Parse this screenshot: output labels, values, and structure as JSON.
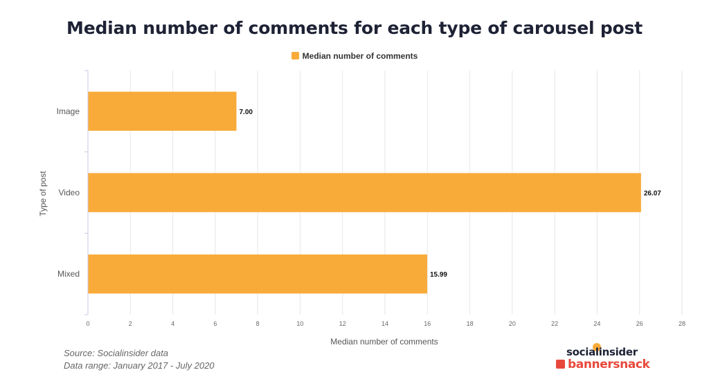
{
  "chart_data": {
    "type": "bar",
    "orientation": "horizontal",
    "title": "Median number of comments for each type of carousel post",
    "xlabel": "Median number of comments",
    "ylabel": "Type of post",
    "categories": [
      "Image",
      "Video",
      "Mixed"
    ],
    "series": [
      {
        "name": "Median number of comments",
        "values": [
          7.0,
          26.07,
          15.99
        ],
        "labels": [
          "7.00",
          "26.07",
          "15.99"
        ]
      }
    ],
    "xlim": [
      0,
      28
    ],
    "xticks": [
      0,
      2,
      4,
      6,
      8,
      10,
      12,
      14,
      16,
      18,
      20,
      22,
      24,
      26,
      28
    ],
    "grid": "vertical",
    "legend_position": "top-center",
    "bar_color": "#f9ab3a"
  },
  "source": {
    "line1": "Source: Socialinsider data",
    "line2": "Data range: January 2017 - July 2020"
  },
  "logos": {
    "socialinsider": "socialinsider",
    "bannersnack": "bannersnack"
  }
}
